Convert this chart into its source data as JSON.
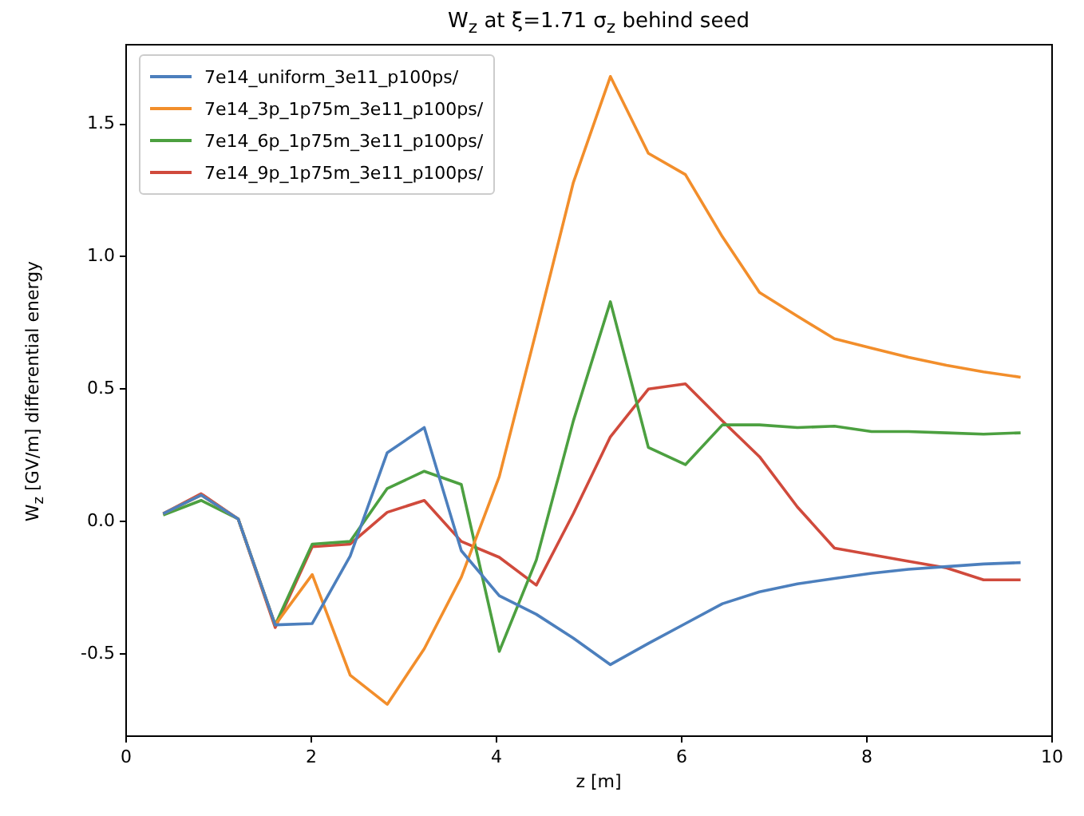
{
  "chart_data": {
    "type": "line",
    "title": "W$_{z}$ at ξ=1.71 σ$_{z}$ behind seed",
    "xlabel": "z [m]",
    "ylabel": "W$_{z}$ [GV/m] differential energy",
    "x": [
      0.4,
      0.81,
      1.21,
      1.61,
      2.01,
      2.42,
      2.82,
      3.22,
      3.62,
      4.03,
      4.43,
      4.83,
      5.23,
      5.64,
      6.04,
      6.44,
      6.84,
      7.25,
      7.65,
      8.05,
      8.45,
      8.86,
      9.26,
      9.66
    ],
    "series": [
      {
        "name": "7e14_uniform_3e11_p100ps/",
        "color": "#4c7fbd",
        "values": [
          0.03,
          0.1,
          0.01,
          -0.39,
          -0.385,
          -0.13,
          0.26,
          0.355,
          -0.11,
          -0.28,
          -0.35,
          -0.44,
          -0.54,
          -0.46,
          -0.385,
          -0.31,
          -0.265,
          -0.235,
          -0.215,
          -0.195,
          -0.18,
          -0.17,
          -0.16,
          -0.155
        ]
      },
      {
        "name": "7e14_3p_1p75m_3e11_p100ps/",
        "color": "#f28e2b",
        "values": [
          0.03,
          0.1,
          0.01,
          -0.39,
          -0.2,
          -0.58,
          -0.69,
          -0.48,
          -0.21,
          0.17,
          0.72,
          1.28,
          1.68,
          1.39,
          1.31,
          1.075,
          0.865,
          0.775,
          0.69,
          0.655,
          0.62,
          0.59,
          0.565,
          0.545
        ]
      },
      {
        "name": "7e14_6p_1p75m_3e11_p100ps/",
        "color": "#4ca040",
        "values": [
          0.025,
          0.08,
          0.01,
          -0.39,
          -0.085,
          -0.075,
          0.125,
          0.19,
          0.14,
          -0.49,
          -0.145,
          0.38,
          0.83,
          0.28,
          0.215,
          0.365,
          0.365,
          0.355,
          0.36,
          0.34,
          0.34,
          0.335,
          0.33,
          0.335
        ]
      },
      {
        "name": "7e14_9p_1p75m_3e11_p100ps/",
        "color": "#d04a3c",
        "values": [
          0.03,
          0.105,
          0.01,
          -0.4,
          -0.095,
          -0.085,
          0.035,
          0.08,
          -0.075,
          -0.135,
          -0.24,
          0.03,
          0.32,
          0.5,
          0.52,
          0.38,
          0.245,
          0.055,
          -0.1,
          -0.125,
          -0.15,
          -0.175,
          -0.22,
          -0.22
        ]
      }
    ],
    "xlim": [
      0,
      10
    ],
    "xticks": [
      0,
      2,
      4,
      6,
      8,
      10
    ],
    "ylim": [
      -0.81,
      1.8
    ],
    "yticks": [
      -0.5,
      {
        "value": 0,
        "label": "0.0"
      },
      0.5,
      {
        "value": 1,
        "label": "1.0"
      },
      1.5
    ],
    "legend": "top left",
    "grid": false,
    "marker": "none",
    "line_style": "solid"
  }
}
